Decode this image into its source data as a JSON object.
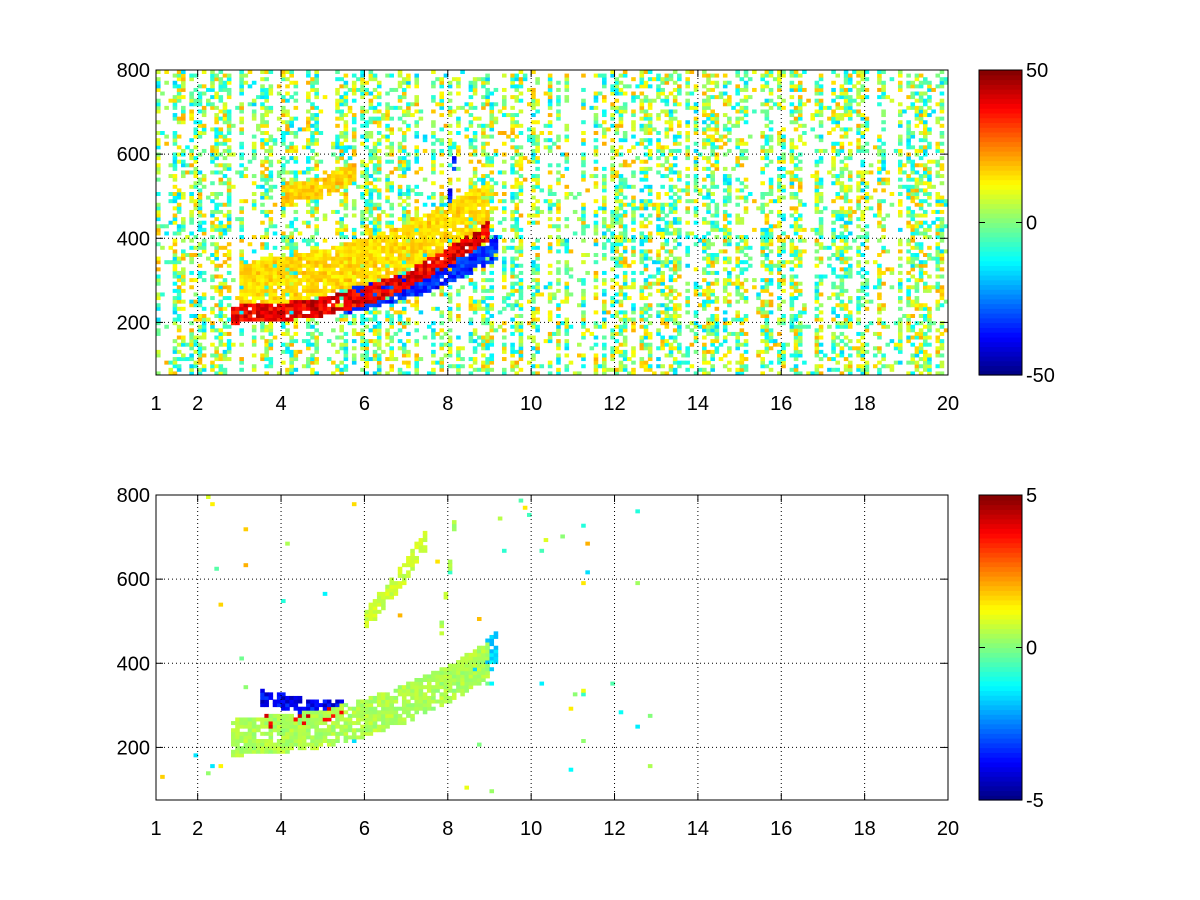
{
  "chart_data": [
    {
      "type": "heatmap",
      "title": "",
      "xlabel": "",
      "ylabel": "",
      "xlim": [
        1,
        20
      ],
      "ylim": [
        75,
        800
      ],
      "grid": true,
      "colormap": "jet",
      "x_ticks": [
        1,
        2,
        4,
        6,
        8,
        10,
        12,
        14,
        16,
        18,
        20
      ],
      "x_tick_labels": [
        "1",
        "2",
        "4",
        "6",
        "8",
        "10",
        "12",
        "14",
        "16",
        "18",
        "20"
      ],
      "y_ticks": [
        200,
        400,
        600,
        800
      ],
      "y_tick_labels": [
        "200",
        "400",
        "600",
        "800"
      ],
      "colorbar": {
        "min": -50,
        "max": 50,
        "tick_values": [
          -50,
          0,
          50
        ],
        "tick_labels": [
          "-50",
          "0",
          "50"
        ]
      },
      "scatter_fill": {
        "density": 0.55,
        "x_range": [
          1,
          20
        ],
        "y_range": [
          75,
          800
        ]
      },
      "features": [
        {
          "x": [
            2.8,
            4.0,
            5.0,
            6.0,
            7.0,
            8.0,
            9.0
          ],
          "y": [
            220,
            225,
            238,
            262,
            300,
            355,
            420
          ],
          "value": 45,
          "thickness": 22
        },
        {
          "x": [
            3.0,
            4.0,
            5.0,
            6.0,
            7.0,
            8.0,
            9.0
          ],
          "y": [
            290,
            300,
            320,
            345,
            380,
            430,
            480
          ],
          "value": 18,
          "thickness": 55
        },
        {
          "x": [
            5.5,
            6.5,
            7.5,
            8.2,
            9.2
          ],
          "y": [
            250,
            270,
            300,
            330,
            380
          ],
          "value": -38,
          "thickness": 30
        },
        {
          "x": [
            7.6,
            8.0,
            8.2
          ],
          "y": [
            300,
            450,
            620
          ],
          "value": -40,
          "thickness": 25
        },
        {
          "x": [
            4.0,
            5.0,
            5.8
          ],
          "y": [
            500,
            520,
            560
          ],
          "value": 20,
          "thickness": 25
        }
      ]
    },
    {
      "type": "heatmap",
      "title": "",
      "xlabel": "",
      "ylabel": "",
      "xlim": [
        1,
        20
      ],
      "ylim": [
        75,
        800
      ],
      "grid": true,
      "colormap": "jet",
      "x_ticks": [
        1,
        2,
        4,
        6,
        8,
        10,
        12,
        14,
        16,
        18,
        20
      ],
      "x_tick_labels": [
        "1",
        "2",
        "4",
        "6",
        "8",
        "10",
        "12",
        "14",
        "16",
        "18",
        "20"
      ],
      "y_ticks": [
        200,
        400,
        600,
        800
      ],
      "y_tick_labels": [
        "200",
        "400",
        "600",
        "800"
      ],
      "colorbar": {
        "min": -5,
        "max": 5,
        "tick_values": [
          -5,
          0,
          5
        ],
        "tick_labels": [
          "-5",
          "0",
          "5"
        ]
      },
      "scatter_fill": {
        "density": 0.02,
        "x_range": [
          1,
          13
        ],
        "y_range": [
          75,
          800
        ]
      },
      "features": [
        {
          "x": [
            2.8,
            4.0,
            5.0,
            6.0,
            7.0,
            8.0,
            9.0
          ],
          "y": [
            225,
            232,
            245,
            270,
            305,
            350,
            410
          ],
          "value": 0.5,
          "thickness": 45
        },
        {
          "x": [
            3.5,
            4.5,
            5.5
          ],
          "y": [
            260,
            270,
            285
          ],
          "value": 4.5,
          "thickness": 14
        },
        {
          "x": [
            3.5,
            4.5,
            5.5
          ],
          "y": [
            320,
            300,
            295
          ],
          "value": -4.5,
          "thickness": 18
        },
        {
          "x": [
            8.3,
            8.8,
            9.2
          ],
          "y": [
            360,
            400,
            440
          ],
          "value": -2.0,
          "thickness": 40
        },
        {
          "x": [
            6.0,
            7.0,
            7.5
          ],
          "y": [
            500,
            620,
            700
          ],
          "value": 0.8,
          "thickness": 25
        },
        {
          "x": [
            7.8,
            8.0,
            8.2
          ],
          "y": [
            450,
            600,
            760
          ],
          "value": 0.5,
          "thickness": 18
        }
      ]
    }
  ]
}
